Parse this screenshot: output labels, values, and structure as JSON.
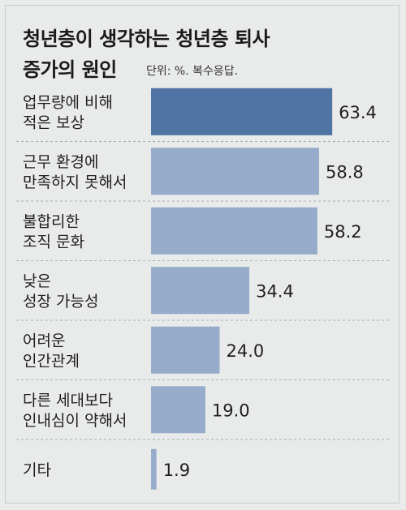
{
  "title_lines": [
    "청년층이 생각하는 청년층 퇴사",
    "증가의 원인"
  ],
  "unit_note": "단위: %. 복수응답.",
  "colors": {
    "highlight": "#4f73a3",
    "bar": "#96acca",
    "divider": "#a9adaf"
  },
  "chart_data": {
    "type": "bar",
    "orientation": "horizontal",
    "title": "청년층이 생각하는 청년층 퇴사 증가의 원인",
    "unit": "%",
    "categories": [
      [
        "업무량에 비해",
        "적은 보상"
      ],
      [
        "근무 환경에",
        "만족하지 못해서"
      ],
      [
        "불합리한",
        "조직 문화"
      ],
      [
        "낮은",
        "성장 가능성"
      ],
      [
        "어려운",
        "인간관계"
      ],
      [
        "다른 세대보다",
        "인내심이 약해서"
      ],
      [
        "기타"
      ]
    ],
    "values": [
      63.4,
      58.8,
      58.2,
      34.4,
      24.0,
      19.0,
      1.9
    ],
    "value_labels": [
      "63.4",
      "58.8",
      "58.2",
      "34.4",
      "24.0",
      "19.0",
      "1.9"
    ],
    "highlight_index": 0
  }
}
